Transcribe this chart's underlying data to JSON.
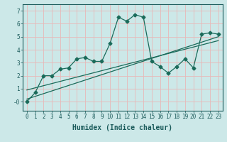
{
  "xlabel": "Humidex (Indice chaleur)",
  "xlim": [
    -0.5,
    23.5
  ],
  "ylim": [
    -0.7,
    7.5
  ],
  "xticks": [
    0,
    1,
    2,
    3,
    4,
    5,
    6,
    7,
    8,
    9,
    10,
    11,
    12,
    13,
    14,
    15,
    16,
    17,
    18,
    19,
    20,
    21,
    22,
    23
  ],
  "yticks": [
    0,
    1,
    2,
    3,
    4,
    5,
    6,
    7
  ],
  "ytick_labels": [
    "-0",
    "1",
    "2",
    "3",
    "4",
    "5",
    "6",
    "7"
  ],
  "bg_color": "#cce8e8",
  "grid_color": "#e8b8b8",
  "line_color": "#1a6b5a",
  "line1_x": [
    0,
    1,
    2,
    3,
    4,
    5,
    6,
    7,
    8,
    9,
    10,
    11,
    12,
    13,
    14,
    15,
    16,
    17,
    18,
    19,
    20,
    21,
    22,
    23
  ],
  "line1_y": [
    0.0,
    0.7,
    2.0,
    2.0,
    2.5,
    2.6,
    3.3,
    3.4,
    3.1,
    3.1,
    4.5,
    6.5,
    6.2,
    6.7,
    6.5,
    3.1,
    2.7,
    2.2,
    2.7,
    3.3,
    2.6,
    5.2,
    5.3,
    5.2
  ],
  "line2_x": [
    0,
    23
  ],
  "line2_y": [
    0.2,
    5.0
  ],
  "line3_x": [
    0,
    23
  ],
  "line3_y": [
    0.9,
    4.7
  ],
  "marker": "D",
  "markersize": 2.5,
  "linewidth": 0.9,
  "font_color": "#1a5a5a",
  "tick_fontsize": 5.5,
  "xlabel_fontsize": 7
}
